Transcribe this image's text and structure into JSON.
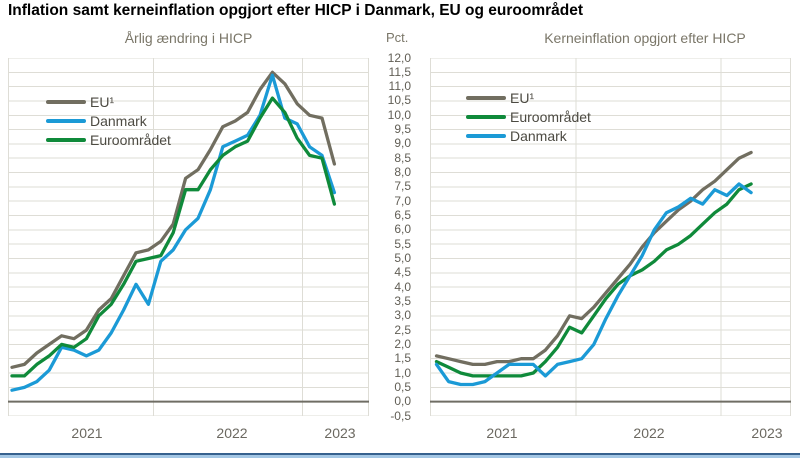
{
  "title": "Inflation samt kerneinflation opgjort efter HICP i Danmark, EU og euroområdet",
  "y_axis": {
    "unit_label": "Pct.",
    "max": 12.0,
    "min": -0.5,
    "step": 0.5,
    "tick_labels": [
      "12,0",
      "11,5",
      "11,0",
      "10,5",
      "10,0",
      "9,5",
      "9,0",
      "8,5",
      "8,0",
      "7,5",
      "7,0",
      "6,5",
      "6,0",
      "5,5",
      "5,0",
      "4,5",
      "4,0",
      "3,5",
      "3,0",
      "2,5",
      "2,0",
      "1,5",
      "1,0",
      "0,5",
      "0,0",
      "-0,5"
    ]
  },
  "colors": {
    "eu": "#716e60",
    "danmark": "#1b9ad6",
    "euro_area": "#0f8a3a",
    "grid": "#deddd6",
    "zero_line": "#6f6d64",
    "plot_border": "#deddd6",
    "bottom_bar_dark": "#36618e",
    "bottom_bar_light": "#a3c6e4"
  },
  "chart_data": [
    {
      "type": "line",
      "title": "Årlig ændring i HICP",
      "frequency": "monthly",
      "x_start": "2021-01",
      "x_end": "2023-03",
      "x_tick_labels": [
        "2021",
        "2022",
        "2023"
      ],
      "ylim": [
        -0.5,
        12.0
      ],
      "grid": true,
      "legend_position": "top-left-inside",
      "series": [
        {
          "name": "EU¹",
          "color": "#716e60",
          "values": [
            1.2,
            1.3,
            1.7,
            2.0,
            2.3,
            2.2,
            2.5,
            3.2,
            3.6,
            4.4,
            5.2,
            5.3,
            5.6,
            6.2,
            7.8,
            8.1,
            8.8,
            9.6,
            9.8,
            10.1,
            10.9,
            11.5,
            11.1,
            10.4,
            10.0,
            9.9,
            8.3
          ]
        },
        {
          "name": "Danmark",
          "color": "#1b9ad6",
          "values": [
            0.4,
            0.5,
            0.7,
            1.1,
            1.9,
            1.8,
            1.6,
            1.8,
            2.4,
            3.2,
            4.1,
            3.4,
            4.9,
            5.3,
            6.0,
            6.4,
            7.4,
            8.9,
            9.1,
            9.3,
            10.0,
            11.4,
            9.9,
            9.7,
            8.9,
            8.6,
            7.3
          ]
        },
        {
          "name": "Euroområdet",
          "color": "#0f8a3a",
          "values": [
            0.9,
            0.9,
            1.3,
            1.6,
            2.0,
            1.9,
            2.2,
            3.0,
            3.4,
            4.1,
            4.9,
            5.0,
            5.1,
            5.9,
            7.4,
            7.4,
            8.1,
            8.6,
            8.9,
            9.1,
            9.9,
            10.6,
            10.1,
            9.2,
            8.6,
            8.5,
            6.9
          ]
        }
      ]
    },
    {
      "type": "line",
      "title": "Kerneinflation opgjort efter HICP",
      "frequency": "monthly",
      "x_start": "2021-01",
      "x_end": "2023-03",
      "x_tick_labels": [
        "2021",
        "2022",
        "2023"
      ],
      "ylim": [
        -0.5,
        12.0
      ],
      "grid": true,
      "legend_position": "top-left-inside",
      "series": [
        {
          "name": "EU¹",
          "color": "#716e60",
          "values": [
            1.6,
            1.5,
            1.4,
            1.3,
            1.3,
            1.4,
            1.4,
            1.5,
            1.5,
            1.8,
            2.3,
            3.0,
            2.9,
            3.3,
            3.8,
            4.3,
            4.8,
            5.4,
            5.9,
            6.3,
            6.7,
            7.0,
            7.4,
            7.7,
            8.1,
            8.5,
            8.7
          ]
        },
        {
          "name": "Euroområdet",
          "color": "#0f8a3a",
          "values": [
            1.4,
            1.2,
            1.0,
            0.9,
            0.9,
            0.9,
            0.9,
            0.9,
            1.0,
            1.4,
            1.9,
            2.6,
            2.4,
            3.0,
            3.6,
            4.1,
            4.4,
            4.6,
            4.9,
            5.3,
            5.5,
            5.8,
            6.2,
            6.6,
            6.9,
            7.4,
            7.6
          ]
        },
        {
          "name": "Danmark",
          "color": "#1b9ad6",
          "values": [
            1.3,
            0.7,
            0.6,
            0.6,
            0.7,
            1.0,
            1.3,
            1.3,
            1.3,
            0.9,
            1.3,
            1.4,
            1.5,
            2.0,
            2.9,
            3.7,
            4.4,
            5.1,
            6.0,
            6.6,
            6.8,
            7.1,
            6.9,
            7.4,
            7.2,
            7.6,
            7.3
          ]
        }
      ]
    }
  ]
}
